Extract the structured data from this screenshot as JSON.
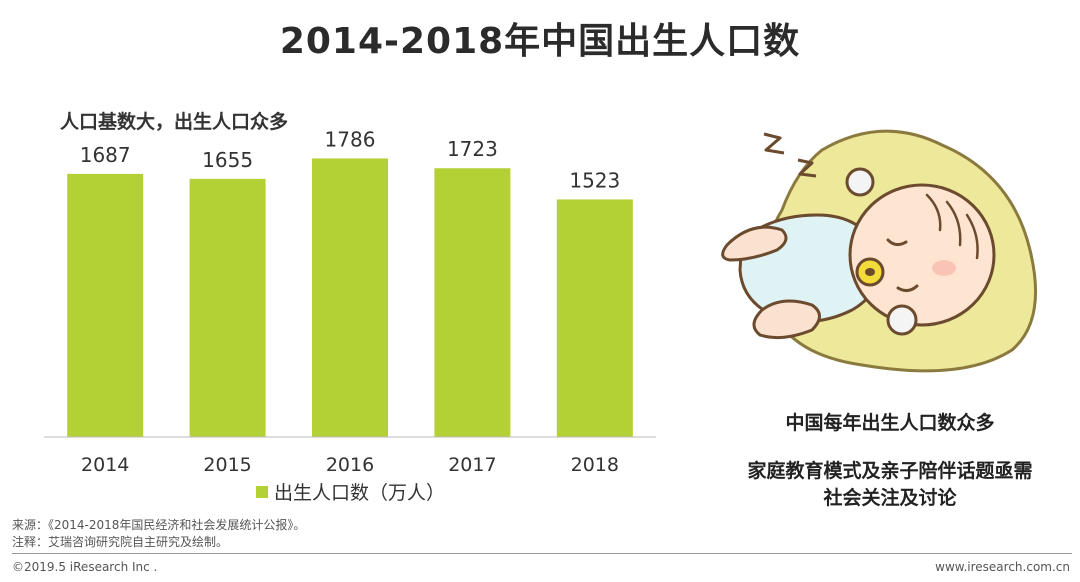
{
  "header": {
    "title": "2014-2018年中国出生人口数"
  },
  "chart_data": {
    "type": "bar",
    "subtitle": "人口基数大，出生人口众多",
    "categories": [
      "2014",
      "2015",
      "2016",
      "2017",
      "2018"
    ],
    "series": [
      {
        "name": "出生人口数（万人）",
        "values": [
          1687,
          1655,
          1786,
          1723,
          1523
        ],
        "color": "#b3d034"
      }
    ],
    "ylim": [
      0,
      1840
    ],
    "legend_position": "bottom",
    "grid": false
  },
  "sidebar": {
    "illustration": "sleeping-baby-illustration",
    "caption_line1": "中国每年出生人口数众多",
    "caption_line2": "家庭教育模式及亲子陪伴话题亟需",
    "caption_line3": "社会关注及讨论"
  },
  "footer": {
    "source": "来源：《2014-2018年国民经济和社会发展统计公报》。",
    "note": "注释：艾瑞咨询研究院自主研究及绘制。",
    "copyright": "©2019.5 iResearch Inc .",
    "website": "www.iresearch.com.cn"
  }
}
